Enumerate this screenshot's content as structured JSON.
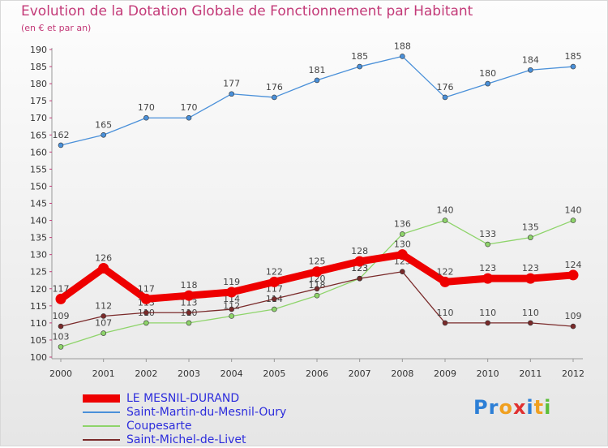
{
  "header": {
    "title": "Evolution de la Dotation Globale de Fonctionnement par Habitant",
    "subtitle": "(en € et par an)"
  },
  "chart_data": {
    "type": "line",
    "x": [
      "2000",
      "2001",
      "2002",
      "2003",
      "2004",
      "2005",
      "2006",
      "2007",
      "2008",
      "2009",
      "2010",
      "2011",
      "2012"
    ],
    "ylim": [
      100,
      190
    ],
    "yticks": [
      100,
      105,
      110,
      115,
      120,
      125,
      130,
      135,
      140,
      145,
      150,
      155,
      160,
      165,
      170,
      175,
      180,
      185,
      190
    ],
    "grid": false,
    "legend_position": "bottom-left",
    "series": [
      {
        "name": "Saint-Martin-du-Mesnil-Oury",
        "color": "#4a90d9",
        "values": [
          162,
          165,
          170,
          170,
          177,
          176,
          181,
          185,
          188,
          176,
          180,
          184,
          185
        ]
      },
      {
        "name": "Coupesarte",
        "color": "#8ed46a",
        "values": [
          103,
          107,
          110,
          110,
          112,
          114,
          118,
          123,
          136,
          140,
          133,
          135,
          140
        ]
      },
      {
        "name": "Saint-Michel-de-Livet",
        "color": "#7a2a2a",
        "values": [
          109,
          112,
          113,
          113,
          114,
          117,
          120,
          123,
          125,
          110,
          110,
          110,
          109
        ]
      },
      {
        "name": "LE MESNIL-DURAND",
        "color": "#ee0000",
        "values": [
          117,
          126,
          117,
          118,
          119,
          122,
          125,
          128,
          130,
          122,
          123,
          123,
          124
        ]
      }
    ]
  },
  "legend": {
    "items": [
      {
        "label": "LE MESNIL-DURAND",
        "color": "#ee0000"
      },
      {
        "label": "Saint-Martin-du-Mesnil-Oury",
        "color": "#4a90d9"
      },
      {
        "label": "Coupesarte",
        "color": "#8ed46a"
      },
      {
        "label": "Saint-Michel-de-Livet",
        "color": "#7a2a2a"
      }
    ]
  },
  "logo": {
    "letters": [
      "P",
      "r",
      "o",
      "x",
      "i",
      "t",
      "i"
    ],
    "colors": [
      "#2d7fd6",
      "#2d7fd6",
      "#f0a020",
      "#e03030",
      "#2d7fd6",
      "#f0a020",
      "#5cbf3a"
    ]
  }
}
